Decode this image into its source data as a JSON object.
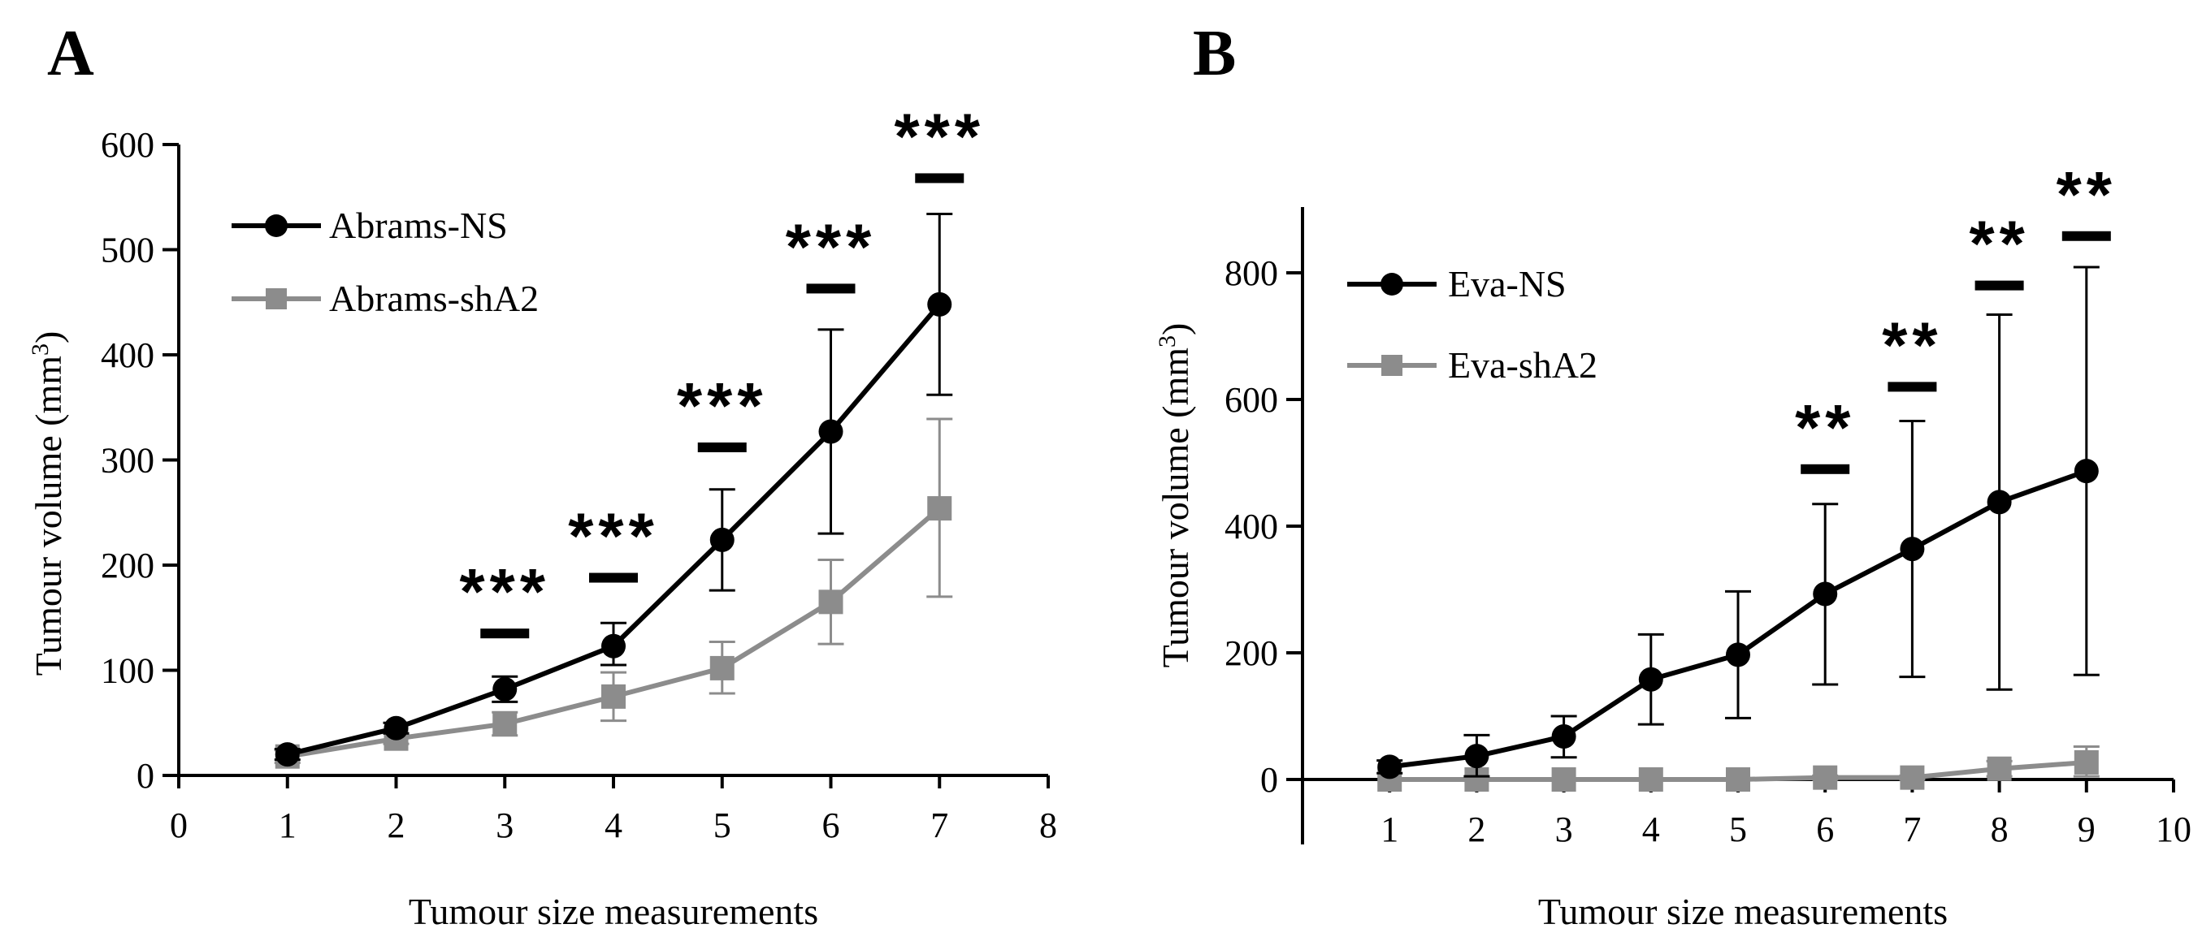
{
  "chart_data": [
    {
      "type": "line",
      "panel_label": "A",
      "xlabel": "Tumour size measurements",
      "ylabel_prefix": "Tumour volume (mm",
      "ylabel_sup": "3",
      "ylabel_suffix": ")",
      "xlim": [
        0,
        8
      ],
      "ylim": [
        0,
        600
      ],
      "x_ticks": [
        0,
        1,
        2,
        3,
        4,
        5,
        6,
        7,
        8
      ],
      "y_ticks": [
        0,
        100,
        200,
        300,
        400,
        500,
        600
      ],
      "legend_position": "top-left",
      "series": [
        {
          "name": "Abrams-NS",
          "color": "#000000",
          "marker": "circle",
          "x": [
            1,
            2,
            3,
            4,
            5,
            6,
            7
          ],
          "values": [
            20,
            45,
            82,
            123,
            224,
            327,
            448
          ],
          "err_low": [
            15,
            40,
            70,
            105,
            176,
            230,
            362
          ],
          "err_high": [
            25,
            50,
            94,
            145,
            272,
            424,
            534
          ]
        },
        {
          "name": "Abrams-shA2",
          "color": "#8c8c8c",
          "marker": "square",
          "x": [
            1,
            2,
            3,
            4,
            5,
            6,
            7
          ],
          "values": [
            18,
            35,
            49,
            75,
            102,
            165,
            254
          ],
          "err_low": [
            12,
            30,
            38,
            52,
            78,
            125,
            170
          ],
          "err_high": [
            24,
            40,
            60,
            98,
            127,
            205,
            339
          ]
        }
      ],
      "significance": [
        {
          "x": 3,
          "y": 135,
          "label": "***"
        },
        {
          "x": 4,
          "y": 188,
          "label": "***"
        },
        {
          "x": 5,
          "y": 312,
          "label": "***"
        },
        {
          "x": 6,
          "y": 463,
          "label": "***"
        },
        {
          "x": 7,
          "y": 568,
          "label": "***"
        }
      ]
    },
    {
      "type": "line",
      "panel_label": "B",
      "xlabel": "Tumour size measurements",
      "ylabel_prefix": "Tumour volume (mm",
      "ylabel_sup": "3",
      "ylabel_suffix": ")",
      "xlim": [
        0,
        10
      ],
      "ylim": [
        -110,
        900
      ],
      "x_ticks": [
        1,
        2,
        3,
        4,
        5,
        6,
        7,
        8,
        9,
        10
      ],
      "y_ticks": [
        0,
        200,
        400,
        600,
        800
      ],
      "legend_position": "top-left",
      "series": [
        {
          "name": "Eva-NS",
          "color": "#000000",
          "marker": "circle",
          "x": [
            1,
            2,
            3,
            4,
            5,
            6,
            7,
            8,
            9
          ],
          "values": [
            20,
            37,
            68,
            158,
            197,
            293,
            364,
            438,
            487
          ],
          "err_low": [
            10,
            5,
            35,
            87,
            97,
            150,
            162,
            142,
            165
          ],
          "err_high": [
            30,
            70,
            100,
            229,
            297,
            435,
            566,
            734,
            809
          ]
        },
        {
          "name": "Eva-shA2",
          "color": "#8c8c8c",
          "marker": "square",
          "x": [
            1,
            2,
            3,
            4,
            5,
            6,
            7,
            8,
            9
          ],
          "values": [
            0,
            0,
            0,
            0,
            0,
            3,
            3,
            17,
            27
          ],
          "err_low": [
            0,
            0,
            0,
            0,
            0,
            0,
            0,
            5,
            5
          ],
          "err_high": [
            0,
            0,
            0,
            0,
            0,
            6,
            6,
            29,
            52
          ]
        }
      ],
      "significance": [
        {
          "x": 6,
          "y": 490,
          "label": "**"
        },
        {
          "x": 7,
          "y": 620,
          "label": "**"
        },
        {
          "x": 8,
          "y": 780,
          "label": "**"
        },
        {
          "x": 9,
          "y": 858,
          "label": "**"
        }
      ]
    }
  ]
}
